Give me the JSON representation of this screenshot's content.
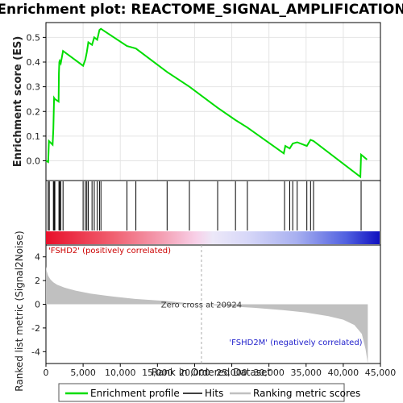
{
  "chart_data": {
    "type": "line",
    "title": "Enrichment plot: REACTOME_SIGNAL_AMPLIFICATION",
    "top_panel": {
      "ylabel": "Enrichment score (ES)",
      "ylim": [
        -0.08,
        0.56
      ],
      "yticks": [
        0.0,
        0.1,
        0.2,
        0.3,
        0.4,
        0.5
      ],
      "ytick_labels": [
        "0.0",
        "0.1",
        "0.2",
        "0.3",
        "0.4",
        "0.5"
      ],
      "series": [
        {
          "name": "Enrichment profile",
          "color": "#00dd00",
          "x": [
            0,
            300,
            400,
            900,
            1000,
            1050,
            1100,
            1200,
            1700,
            1750,
            1800,
            1850,
            2000,
            2300,
            5000,
            5300,
            5500,
            5700,
            6200,
            6500,
            6900,
            7200,
            7400,
            10900,
            12100,
            16300,
            19300,
            23100,
            25500,
            27100,
            32000,
            32200,
            32800,
            33200,
            33800,
            35100,
            35600,
            36000,
            42300,
            42400,
            43200
          ],
          "y": [
            0.0,
            -0.005,
            0.08,
            0.065,
            0.13,
            0.2,
            0.255,
            0.25,
            0.24,
            0.355,
            0.4,
            0.405,
            0.395,
            0.445,
            0.385,
            0.41,
            0.44,
            0.48,
            0.47,
            0.5,
            0.49,
            0.53,
            0.535,
            0.465,
            0.455,
            0.36,
            0.3,
            0.215,
            0.165,
            0.135,
            0.03,
            0.06,
            0.05,
            0.07,
            0.075,
            0.06,
            0.085,
            0.08,
            -0.065,
            0.025,
            0.005
          ]
        }
      ]
    },
    "hits": {
      "name": "Hits",
      "x": [
        300,
        450,
        1000,
        1100,
        1200,
        1750,
        1800,
        1850,
        2000,
        2300,
        5000,
        5300,
        5500,
        5700,
        6200,
        6500,
        6900,
        7200,
        7400,
        10900,
        12100,
        16300,
        19300,
        23100,
        25500,
        27100,
        32100,
        32800,
        33200,
        33800,
        35100,
        35600,
        36000,
        42400
      ]
    },
    "heatmap_bar": {
      "stops": [
        {
          "pos": 0.0,
          "color": "#e8102a"
        },
        {
          "pos": 0.2,
          "color": "#f06070"
        },
        {
          "pos": 0.35,
          "color": "#f4a0b4"
        },
        {
          "pos": 0.45,
          "color": "#f8d0e8"
        },
        {
          "pos": 0.5,
          "color": "#ece8f8"
        },
        {
          "pos": 0.6,
          "color": "#d8d8f8"
        },
        {
          "pos": 0.75,
          "color": "#a8b0f0"
        },
        {
          "pos": 0.9,
          "color": "#5060e0"
        },
        {
          "pos": 1.0,
          "color": "#1010c0"
        }
      ]
    },
    "bottom_panel": {
      "ylabel": "Ranked list metric (Signal2Noise)",
      "xlabel": "Rank in Ordered Dataset",
      "ylim": [
        -5,
        5
      ],
      "yticks": [
        -4,
        -2,
        0,
        2,
        4
      ],
      "ytick_labels": [
        "-4",
        "-2",
        "0",
        "2",
        "4"
      ],
      "series": [
        {
          "name": "Ranking metric scores",
          "color": "#c0c0c0",
          "x": [
            0,
            100,
            300,
            600,
            1000,
            1500,
            2500,
            4000,
            6000,
            9000,
            12000,
            16000,
            19000,
            20924,
            24000,
            28000,
            32000,
            35000,
            38000,
            40000,
            41500,
            42500,
            43000,
            43300
          ],
          "y": [
            3.2,
            2.8,
            2.4,
            2.1,
            1.85,
            1.65,
            1.4,
            1.15,
            0.9,
            0.65,
            0.45,
            0.28,
            0.1,
            0.0,
            -0.15,
            -0.3,
            -0.5,
            -0.7,
            -1.0,
            -1.3,
            -1.75,
            -2.5,
            -3.8,
            -5.0
          ]
        }
      ],
      "zero_cross_label": "Zero cross at 20924",
      "zero_cross_x": 20924,
      "positive_label": "'FSHD2' (positively correlated)",
      "negative_label": "'FSHD2M' (negatively correlated)"
    },
    "xlim": [
      0,
      45000
    ],
    "xticks": [
      0,
      5000,
      10000,
      15000,
      20000,
      25000,
      30000,
      35000,
      40000,
      45000
    ],
    "xtick_labels": [
      "0",
      "5,000",
      "10,000",
      "15,000",
      "20,000",
      "25,000",
      "30,000",
      "35,000",
      "40,000",
      "45,000"
    ],
    "legend": {
      "placement": "bottom",
      "entries": [
        {
          "label": "Enrichment profile",
          "color": "#00dd00"
        },
        {
          "label": "Hits",
          "color": "#000000"
        },
        {
          "label": "Ranking metric scores",
          "color": "#c0c0c0"
        }
      ]
    }
  }
}
